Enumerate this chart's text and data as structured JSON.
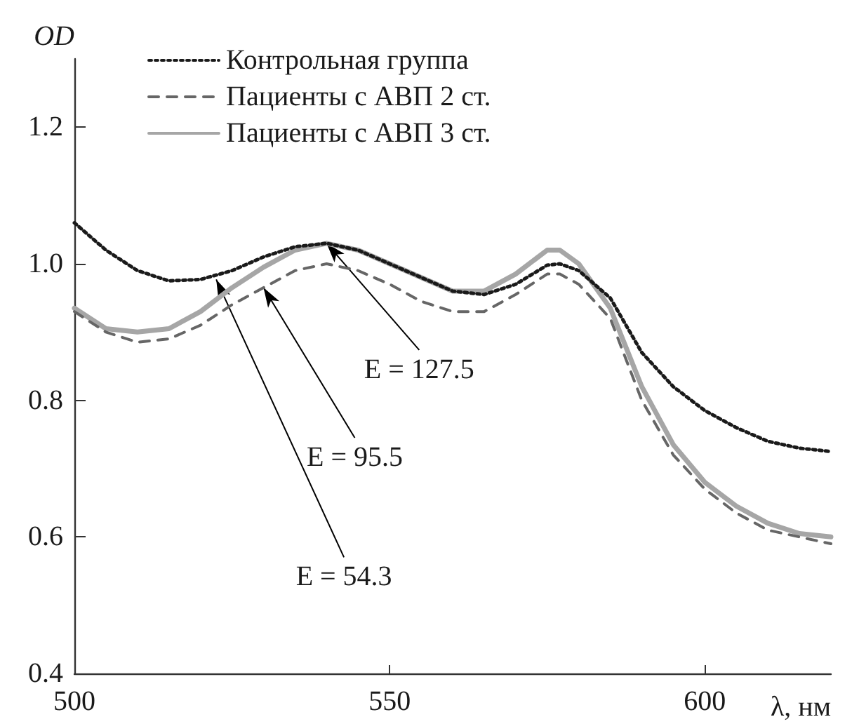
{
  "chart_data": {
    "type": "line",
    "xlabel": "λ, нм",
    "ylabel": "OD",
    "x": [
      500,
      505,
      510,
      515,
      520,
      525,
      530,
      535,
      540,
      545,
      550,
      555,
      560,
      565,
      570,
      575,
      577,
      580,
      585,
      590,
      595,
      600,
      605,
      610,
      615,
      620
    ],
    "series": [
      {
        "name": "Контрольная группа",
        "color": "#1a1a1a",
        "line_style": "dotted",
        "values": [
          1.06,
          1.02,
          0.99,
          0.975,
          0.977,
          0.99,
          1.01,
          1.025,
          1.03,
          1.02,
          1.0,
          0.98,
          0.96,
          0.955,
          0.97,
          0.998,
          1.0,
          0.99,
          0.95,
          0.87,
          0.82,
          0.785,
          0.76,
          0.74,
          0.73,
          0.725
        ]
      },
      {
        "name": "Пациенты с АВП 2 ст.",
        "color": "#666666",
        "line_style": "dashed",
        "values": [
          0.93,
          0.9,
          0.885,
          0.89,
          0.91,
          0.94,
          0.965,
          0.99,
          1.0,
          0.99,
          0.97,
          0.945,
          0.93,
          0.93,
          0.955,
          0.985,
          0.985,
          0.97,
          0.92,
          0.8,
          0.72,
          0.67,
          0.635,
          0.61,
          0.6,
          0.59
        ]
      },
      {
        "name": "Пациенты с АВП 3 ст.",
        "color": "#a6a6a6",
        "line_style": "solid",
        "values": [
          0.935,
          0.905,
          0.9,
          0.905,
          0.93,
          0.965,
          0.995,
          1.02,
          1.03,
          1.02,
          1.0,
          0.98,
          0.96,
          0.96,
          0.985,
          1.02,
          1.02,
          1.0,
          0.935,
          0.82,
          0.735,
          0.68,
          0.645,
          0.62,
          0.605,
          0.6
        ]
      }
    ],
    "annotations": [
      {
        "text": "E = 127.5",
        "x": 540,
        "y": 1.03
      },
      {
        "text": "E = 95.5",
        "x": 530,
        "y": 0.965
      },
      {
        "text": "E = 54.3",
        "x": 522.5,
        "y": 0.977
      }
    ],
    "xlim": [
      500,
      620
    ],
    "xticks": [
      500,
      550,
      600
    ],
    "ylim": [
      0.4,
      1.3
    ],
    "yticks": [
      0.4,
      0.6,
      0.8,
      {
        "value": 1.0,
        "label": "1.0"
      },
      1.2
    ],
    "grid": false,
    "legend": "top left",
    "marker": "none"
  }
}
